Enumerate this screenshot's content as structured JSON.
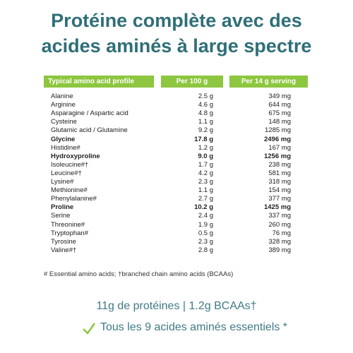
{
  "title": [
    "Protéine complète avec des",
    "acides aminés à large spectre"
  ],
  "table": {
    "header": [
      "Typical amino acid profile",
      "Per 100 g",
      "Per 14 g serving"
    ],
    "rows": [
      [
        "Alanine",
        "2.5 g",
        "349 mg"
      ],
      [
        "Arginine",
        "4.6 g",
        "644 mg"
      ],
      [
        "Asparagine / Aspartic acid",
        "4.8 g",
        "675 mg"
      ],
      [
        "Cysteine",
        "1.1 g",
        "148 mg"
      ],
      [
        "Glutamic acid / Glutamine",
        "9.2 g",
        "1285 mg"
      ],
      [
        "Glycine",
        "17.8 g",
        "2496 mg"
      ],
      [
        "Histidine#",
        "1.2 g",
        "167 mg"
      ],
      [
        "Hydroxyproline",
        "9.0 g",
        "1256 mg"
      ],
      [
        "Isoleucine#†",
        "1.7 g",
        "238 mg"
      ],
      [
        "Leucine#†",
        "4.2 g",
        "581 mg"
      ],
      [
        "Lysine#",
        "2.3 g",
        "318 mg"
      ],
      [
        "Methionine#",
        "1.1 g",
        "154 mg"
      ],
      [
        "Phenylalanine#",
        "2.7 g",
        "377 mg"
      ],
      [
        "Proline",
        "10.2 g",
        "1425 mg"
      ],
      [
        "Serine",
        "2.4 g",
        "337 mg"
      ],
      [
        "Threonine#",
        "1.9 g",
        "260 mg"
      ],
      [
        "Tryptophan#",
        "0.5 g",
        "76 mg"
      ],
      [
        "Tyrosine",
        "2.3 g",
        "328 mg"
      ],
      [
        "Valine#†",
        "2.8 g",
        "389 mg"
      ]
    ],
    "bold_rows": [
      5,
      7,
      13
    ]
  },
  "footnote": "# Essential amino acids; †branched chain amino acids (BCAAs)",
  "summary": "11g de protéines | 1.2g BCAAs†",
  "check_line": "Tous les 9 acides aminés essentiels *"
}
